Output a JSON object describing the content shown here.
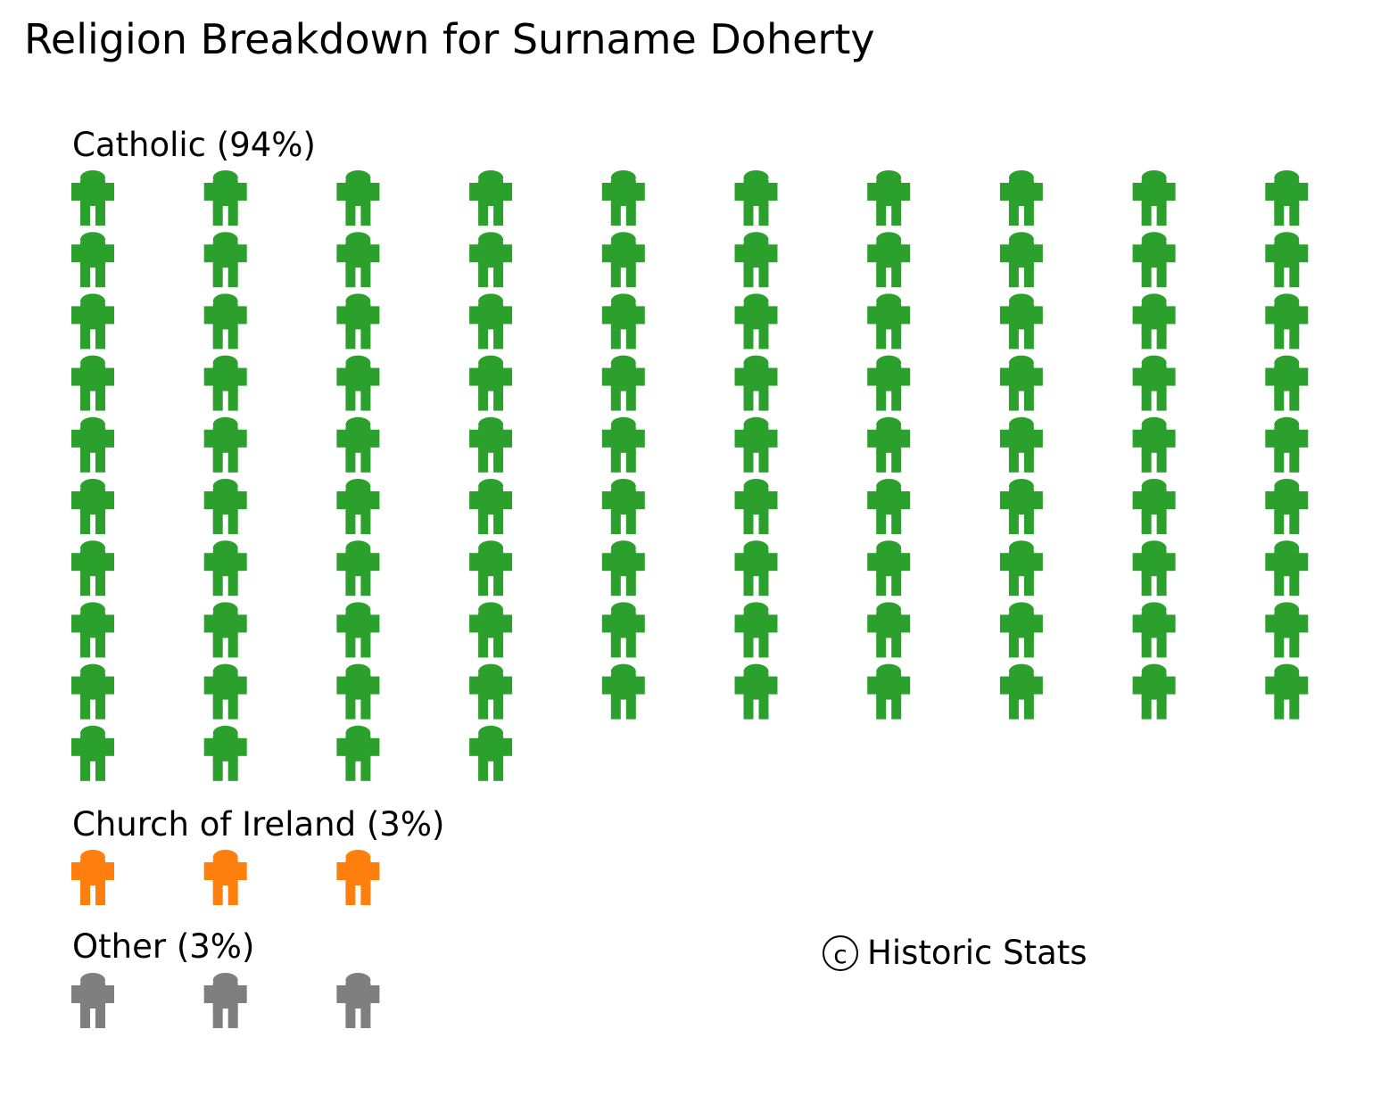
{
  "chart_data": {
    "type": "pictogram",
    "title": "Religion Breakdown for Surname Doherty",
    "icon": "person-icon",
    "columns": 10,
    "groups": [
      {
        "label": "Catholic (94%)",
        "name": "Catholic",
        "percent": 94,
        "count": 94,
        "color": "#2ca02c"
      },
      {
        "label": "Church of Ireland (3%)",
        "name": "Church of Ireland",
        "percent": 3,
        "count": 3,
        "color": "#ff7f0e"
      },
      {
        "label": "Other (3%)",
        "name": "Other",
        "percent": 3,
        "count": 3,
        "color": "#7f7f7f"
      }
    ],
    "watermark": "Historic Stats",
    "watermark_symbol": "c"
  }
}
